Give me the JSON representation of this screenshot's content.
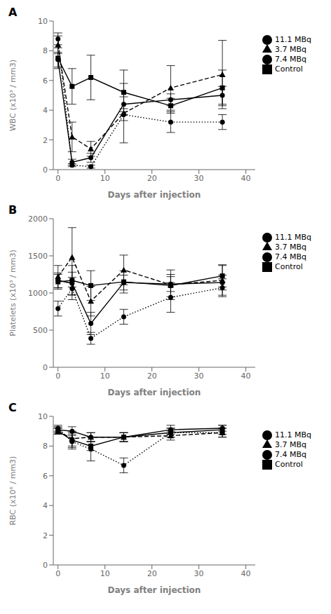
{
  "chart_data": [
    {
      "type": "line",
      "annotation": "A",
      "xlabel": "Days after injection",
      "ylabel": "WBC (x10³ / mm3)",
      "x": [
        0,
        3,
        7,
        14,
        24,
        35
      ],
      "xlim": [
        -1,
        42
      ],
      "xticks": [
        0,
        10,
        20,
        30,
        40
      ],
      "ylim": [
        0,
        10
      ],
      "yticks": [
        0,
        2,
        4,
        6,
        8,
        10
      ],
      "grid": false,
      "legend": "right",
      "series": [
        {
          "name": "Control",
          "color": "#000000",
          "marker": "square",
          "line_style": "solid",
          "values": [
            7.5,
            5.6,
            6.2,
            5.2,
            4.3,
            5.5
          ],
          "yerr": [
            0.7,
            1.2,
            1.5,
            1.5,
            0.5,
            1.2
          ]
        },
        {
          "name": "3.7 MBq",
          "color": "#000000",
          "marker": "triangle",
          "line_style": "dashed",
          "values": [
            8.4,
            2.2,
            1.4,
            3.8,
            5.5,
            6.4
          ],
          "yerr": [
            0.6,
            1.0,
            0.5,
            2.0,
            1.5,
            2.3
          ]
        },
        {
          "name": "7.4 MBq",
          "color": "#000000",
          "marker": "circle",
          "line_style": "solid",
          "values": [
            7.4,
            0.5,
            0.8,
            4.4,
            4.7,
            5.0
          ],
          "yerr": [
            0.5,
            0.2,
            0.3,
            0.5,
            0.4,
            0.6
          ]
        },
        {
          "name": "11.1 MBq",
          "color": "#000000",
          "marker": "circle",
          "line_style": "dotted",
          "values": [
            8.8,
            0.3,
            0.2,
            3.7,
            3.2,
            3.2
          ],
          "yerr": [
            0.4,
            0.1,
            0.1,
            0.4,
            0.7,
            0.5
          ]
        }
      ]
    },
    {
      "type": "line",
      "annotation": "B",
      "xlabel": "Days after injection",
      "ylabel": "Platelets (x10³ / mm3)",
      "x": [
        0,
        3,
        7,
        14,
        24,
        35
      ],
      "xlim": [
        -1,
        42
      ],
      "xticks": [
        0,
        10,
        20,
        30,
        40
      ],
      "ylim": [
        0,
        2000
      ],
      "yticks": [
        0,
        500,
        1000,
        1500,
        2000
      ],
      "grid": false,
      "legend": "right",
      "series": [
        {
          "name": "Control",
          "color": "#000000",
          "marker": "square",
          "line_style": "solid",
          "values": [
            1150,
            1170,
            1100,
            1150,
            1100,
            1230
          ],
          "yerr": [
            100,
            200,
            200,
            150,
            150,
            150
          ]
        },
        {
          "name": "3.7 MBq",
          "color": "#000000",
          "marker": "triangle",
          "line_style": "dashed",
          "values": [
            1220,
            1480,
            890,
            1310,
            1110,
            1170
          ],
          "yerr": [
            150,
            400,
            200,
            200,
            200,
            200
          ]
        },
        {
          "name": "7.4 MBq",
          "color": "#000000",
          "marker": "circle",
          "line_style": "solid",
          "values": [
            1170,
            1130,
            590,
            1140,
            1120,
            1140
          ],
          "yerr": [
            100,
            150,
            150,
            100,
            100,
            100
          ]
        },
        {
          "name": "11.1 MBq",
          "color": "#000000",
          "marker": "circle",
          "line_style": "dotted",
          "values": [
            790,
            1060,
            390,
            680,
            940,
            1070
          ],
          "yerr": [
            100,
            150,
            80,
            100,
            200,
            120
          ]
        }
      ]
    },
    {
      "type": "line",
      "annotation": "C",
      "xlabel": "Days after injection",
      "ylabel": "RBC (x10⁶ / mm3)",
      "x": [
        0,
        3,
        7,
        14,
        24,
        35
      ],
      "xlim": [
        -1,
        42
      ],
      "xticks": [
        0,
        10,
        20,
        30,
        40
      ],
      "ylim": [
        0,
        10
      ],
      "yticks": [
        0,
        2,
        4,
        6,
        8,
        10
      ],
      "grid": false,
      "legend": "right",
      "series": [
        {
          "name": "Control",
          "color": "#000000",
          "marker": "square",
          "line_style": "solid",
          "values": [
            9.0,
            8.4,
            8.0,
            8.6,
            8.9,
            9.1
          ],
          "yerr": [
            0.2,
            0.5,
            0.3,
            0.3,
            0.3,
            0.3
          ]
        },
        {
          "name": "3.7 MBq",
          "color": "#000000",
          "marker": "triangle",
          "line_style": "dashed",
          "values": [
            9.0,
            8.5,
            8.6,
            8.6,
            8.7,
            8.9
          ],
          "yerr": [
            0.2,
            0.5,
            0.3,
            0.3,
            0.3,
            0.3
          ]
        },
        {
          "name": "7.4 MBq",
          "color": "#000000",
          "marker": "circle",
          "line_style": "solid",
          "values": [
            9.1,
            9.0,
            8.6,
            8.6,
            9.1,
            9.2
          ],
          "yerr": [
            0.2,
            0.3,
            0.3,
            0.3,
            0.3,
            0.2
          ]
        },
        {
          "name": "11.1 MBq",
          "color": "#000000",
          "marker": "circle",
          "line_style": "dotted",
          "values": [
            9.2,
            8.3,
            7.8,
            6.7,
            8.9,
            8.9
          ],
          "yerr": [
            0.2,
            0.5,
            0.8,
            0.5,
            0.3,
            0.3
          ]
        }
      ]
    }
  ]
}
